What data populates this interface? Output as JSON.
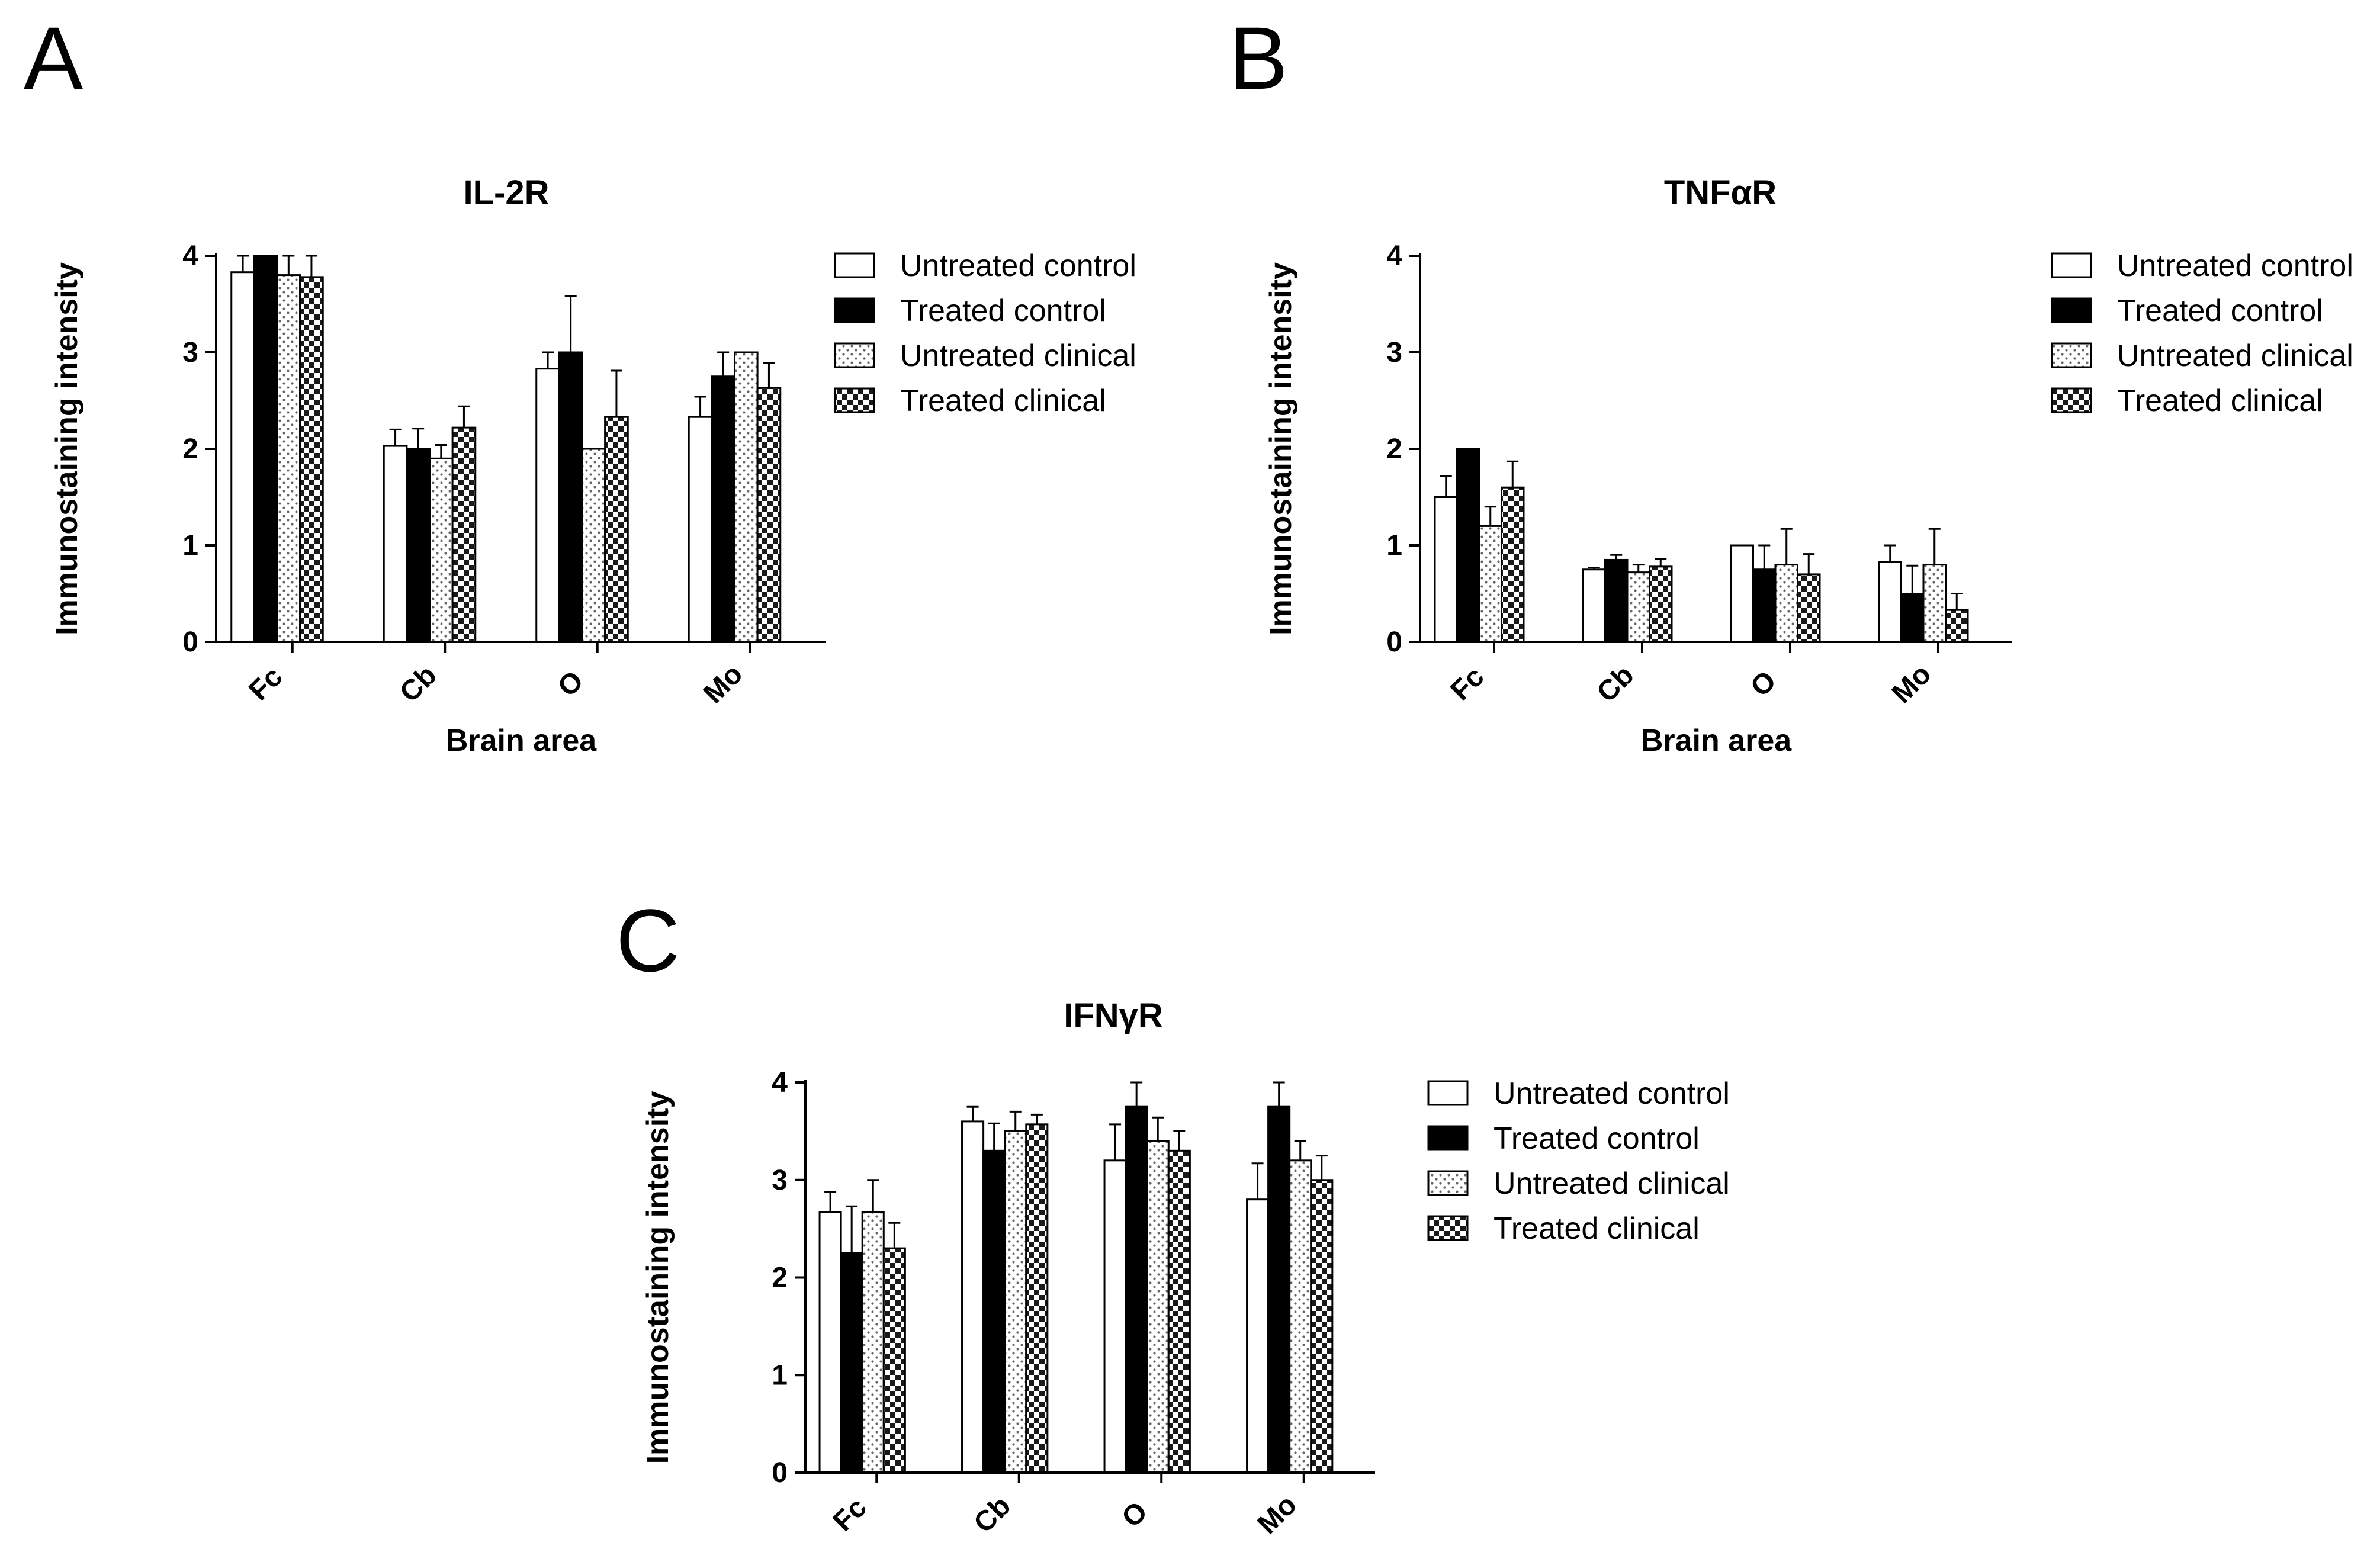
{
  "figure": {
    "panels": [
      "A",
      "B",
      "C"
    ]
  },
  "legend": {
    "entries": [
      "Untreated control",
      "Treated control",
      "Untreated clinical",
      "Treated clinical"
    ]
  },
  "chart_data": [
    {
      "panel": "A",
      "type": "bar",
      "title": "IL-2R",
      "xlabel": "Brain area",
      "ylabel": "Immunostaining intensity",
      "categories": [
        "Fc",
        "Cb",
        "O",
        "Mo"
      ],
      "ylim": [
        0,
        4
      ],
      "yticks": [
        "0",
        "1",
        "2",
        "3",
        "4"
      ],
      "series": [
        {
          "name": "Untreated control",
          "values": [
            3.83,
            2.03,
            2.83,
            2.33
          ],
          "errors": [
            0.17,
            0.17,
            0.17,
            0.21
          ]
        },
        {
          "name": "Treated control",
          "values": [
            4.0,
            2.0,
            3.0,
            2.75
          ],
          "errors": [
            0.0,
            0.21,
            0.58,
            0.25
          ]
        },
        {
          "name": "Untreated clinical",
          "values": [
            3.8,
            1.9,
            2.0,
            3.0
          ],
          "errors": [
            0.2,
            0.14,
            0.0,
            0.0
          ]
        },
        {
          "name": "Treated clinical",
          "values": [
            3.78,
            2.22,
            2.33,
            2.63
          ],
          "errors": [
            0.22,
            0.22,
            0.48,
            0.26
          ]
        }
      ]
    },
    {
      "panel": "B",
      "type": "bar",
      "title": "TNFαR",
      "xlabel": "Brain area",
      "ylabel": "Immunostaining intensity",
      "categories": [
        "Fc",
        "Cb",
        "O",
        "Mo"
      ],
      "ylim": [
        0,
        4
      ],
      "yticks": [
        "0",
        "1",
        "2",
        "3",
        "4"
      ],
      "series": [
        {
          "name": "Untreated control",
          "values": [
            1.5,
            0.75,
            1.0,
            0.83
          ],
          "errors": [
            0.22,
            0.02,
            0.0,
            0.17
          ]
        },
        {
          "name": "Treated control",
          "values": [
            2.0,
            0.85,
            0.75,
            0.5
          ],
          "errors": [
            0.0,
            0.05,
            0.25,
            0.29
          ]
        },
        {
          "name": "Untreated clinical",
          "values": [
            1.2,
            0.72,
            0.8,
            0.8
          ],
          "errors": [
            0.2,
            0.08,
            0.37,
            0.37
          ]
        },
        {
          "name": "Treated clinical",
          "values": [
            1.6,
            0.78,
            0.7,
            0.33
          ],
          "errors": [
            0.27,
            0.08,
            0.21,
            0.17
          ]
        }
      ]
    },
    {
      "panel": "C",
      "type": "bar",
      "title": "IFNγR",
      "xlabel": "",
      "ylabel": "Immunostaining intensity",
      "categories": [
        "Fc",
        "Cb",
        "O",
        "Mo"
      ],
      "ylim": [
        0,
        4
      ],
      "yticks": [
        "0",
        "1",
        "2",
        "3",
        "4"
      ],
      "series": [
        {
          "name": "Untreated control",
          "values": [
            2.67,
            3.6,
            3.2,
            2.8
          ],
          "errors": [
            0.21,
            0.15,
            0.37,
            0.37
          ]
        },
        {
          "name": "Treated control",
          "values": [
            2.25,
            3.3,
            3.75,
            3.75
          ],
          "errors": [
            0.48,
            0.28,
            0.25,
            0.25
          ]
        },
        {
          "name": "Untreated clinical",
          "values": [
            2.67,
            3.5,
            3.4,
            3.2
          ],
          "errors": [
            0.33,
            0.2,
            0.24,
            0.2
          ]
        },
        {
          "name": "Treated clinical",
          "values": [
            2.3,
            3.57,
            3.3,
            3.0
          ],
          "errors": [
            0.26,
            0.1,
            0.2,
            0.25
          ]
        }
      ]
    }
  ]
}
